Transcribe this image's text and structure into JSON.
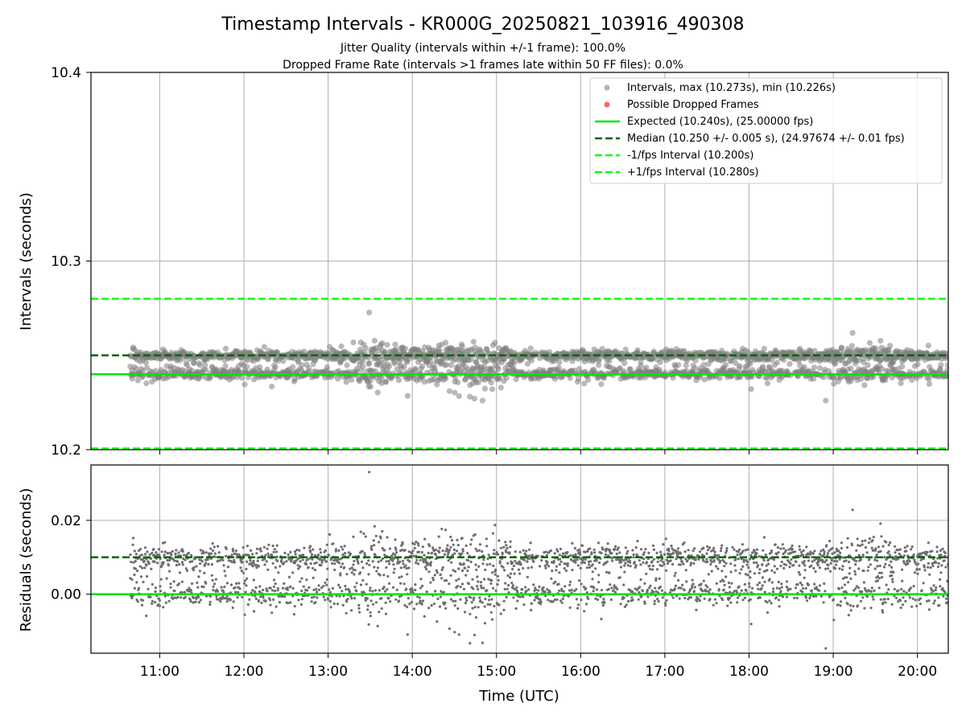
{
  "title": "Timestamp Intervals - KR000G_20250821_103916_490308",
  "subtitle_1": "Jitter Quality (intervals within +/-1 frame): 100.0%",
  "subtitle_2": "Dropped Frame Rate (intervals >1 frames late within 50 FF files): 0.0%",
  "colors": {
    "points": "#808080",
    "dropped": "#ff0000",
    "expected": "#00e600",
    "median": "#006400",
    "bound": "#00ff00",
    "grid": "#b0b0b0"
  },
  "chart_data": [
    {
      "type": "scatter",
      "panel": "intervals",
      "ylabel": "Intervals (seconds)",
      "ylim": [
        10.2,
        10.4
      ],
      "yticks": [
        "10.2",
        "10.3",
        "10.4"
      ],
      "ytick_values": [
        10.2,
        10.3,
        10.4
      ],
      "xlim": [
        "10:11",
        "20:22"
      ],
      "grid": true,
      "legend_position": "top-right",
      "legend": [
        "Intervals, max (10.273s), min (10.226s)",
        "Possible Dropped Frames",
        "Expected (10.240s), (25.00000 fps)",
        "Median (10.250 +/- 0.005 s), (24.97674 +/- 0.01 fps)",
        "-1/fps Interval (10.200s)",
        "+1/fps Interval (10.280s)"
      ],
      "reference_lines": {
        "expected": 10.24,
        "median": 10.25,
        "minus_one_fps": 10.2,
        "plus_one_fps": 10.28
      },
      "data_range": {
        "x_start": "10:39",
        "x_end": "20:22",
        "y_min": 10.226,
        "y_max": 10.273
      },
      "dropped_count": 0
    },
    {
      "type": "scatter",
      "panel": "residuals",
      "ylabel": "Residuals (seconds)",
      "xlabel": "Time (UTC)",
      "ylim": [
        -0.016,
        0.035
      ],
      "yticks": [
        "0.00",
        "0.02"
      ],
      "ytick_values": [
        0.0,
        0.02
      ],
      "xticks": [
        "11:00",
        "12:00",
        "13:00",
        "14:00",
        "15:00",
        "16:00",
        "17:00",
        "18:00",
        "19:00",
        "20:00"
      ],
      "xlim": [
        "10:11",
        "20:22"
      ],
      "grid": true,
      "reference_lines": {
        "zero": 0.0,
        "median_offset": 0.01
      },
      "data_range": {
        "x_start": "10:39",
        "x_end": "20:22",
        "y_min": -0.014,
        "y_max": 0.033
      }
    }
  ]
}
